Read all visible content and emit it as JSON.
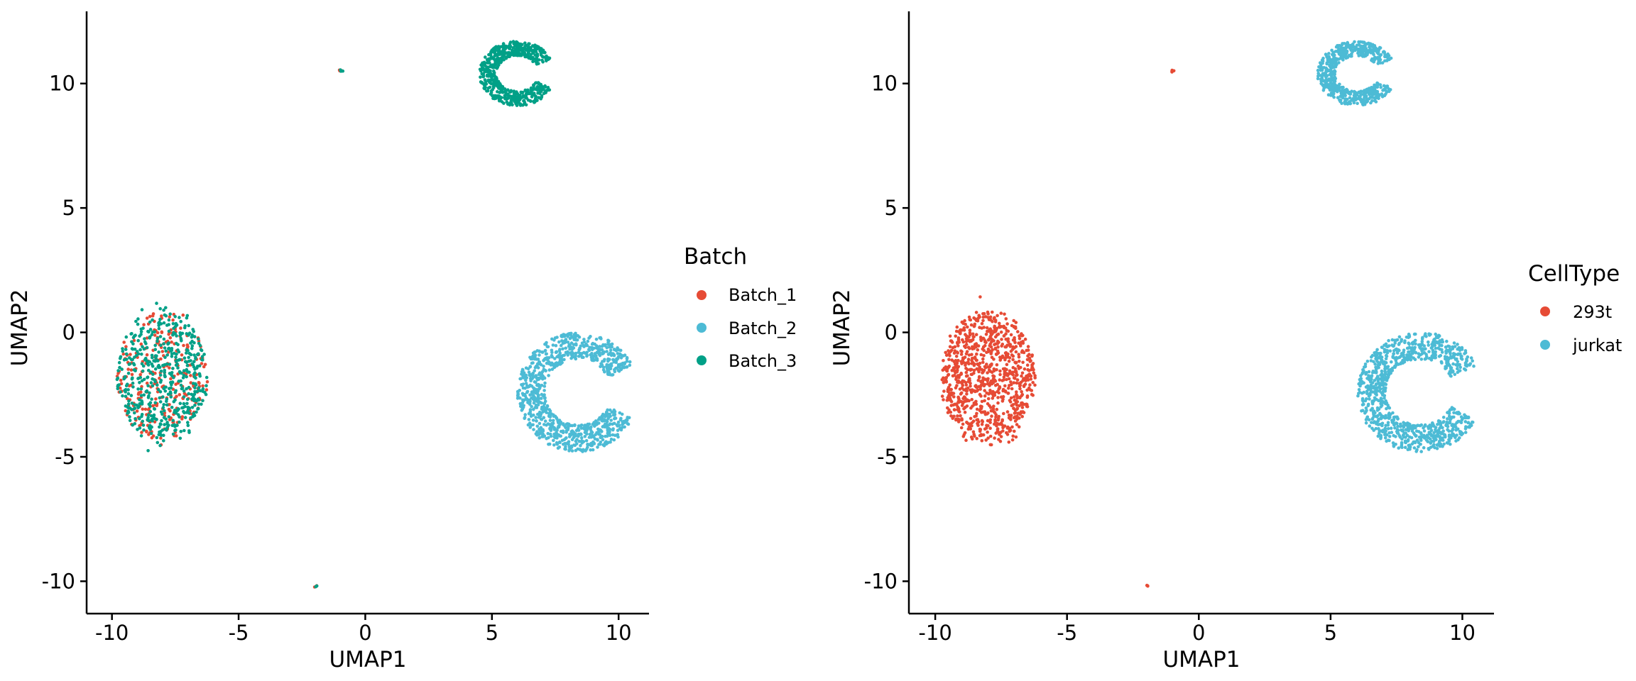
{
  "colors": {
    "red": "#E64B35",
    "blue": "#4DBBD5",
    "green": "#00A087"
  },
  "chart_data": [
    {
      "type": "scatter",
      "xlabel": "UMAP1",
      "ylabel": "UMAP2",
      "xlim": [
        -11,
        11.2
      ],
      "ylim": [
        -11.3,
        12.9
      ],
      "xticks": [
        -10,
        -5,
        0,
        5,
        10
      ],
      "xtick_labels": [
        "-10",
        "-5",
        "0",
        "5",
        "10"
      ],
      "yticks": [
        -10,
        -5,
        0,
        5,
        10
      ],
      "ytick_labels": [
        "-10",
        "-5",
        "0",
        "5",
        "10"
      ],
      "grid": false,
      "legend_position": "right",
      "legend_title": "Batch",
      "series": [
        {
          "name": "Batch_1",
          "color": "#E64B35",
          "clusters": [
            {
              "shape": "blob",
              "cx": -8.0,
              "cy": -1.8,
              "rx": 1.8,
              "ry": 2.6,
              "n": 260
            },
            {
              "shape": "blob",
              "cx": -0.95,
              "cy": 10.5,
              "rx": 0.1,
              "ry": 0.05,
              "n": 3
            },
            {
              "shape": "blob",
              "cx": -1.95,
              "cy": -10.2,
              "rx": 0.06,
              "ry": 0.06,
              "n": 2
            }
          ]
        },
        {
          "name": "Batch_2",
          "color": "#4DBBD5",
          "clusters": [
            {
              "shape": "crescent",
              "cx": 8.4,
              "cy": -2.4,
              "rx": 2.4,
              "ry": 2.4,
              "n": 950
            }
          ]
        },
        {
          "name": "Batch_3",
          "color": "#00A087",
          "clusters": [
            {
              "shape": "blob",
              "cx": -8.0,
              "cy": -1.8,
              "rx": 1.8,
              "ry": 2.6,
              "n": 520
            },
            {
              "shape": "crescent",
              "cx": 6.0,
              "cy": 10.4,
              "rx": 1.5,
              "ry": 1.3,
              "n": 620
            },
            {
              "shape": "blob",
              "cx": -0.95,
              "cy": 10.5,
              "rx": 0.08,
              "ry": 0.05,
              "n": 3
            },
            {
              "shape": "blob",
              "cx": -1.95,
              "cy": -10.2,
              "rx": 0.06,
              "ry": 0.06,
              "n": 2
            }
          ]
        }
      ]
    },
    {
      "type": "scatter",
      "xlabel": "UMAP1",
      "ylabel": "UMAP2",
      "xlim": [
        -11,
        11.2
      ],
      "ylim": [
        -11.3,
        12.9
      ],
      "xticks": [
        -10,
        -5,
        0,
        5,
        10
      ],
      "xtick_labels": [
        "-10",
        "-5",
        "0",
        "5",
        "10"
      ],
      "yticks": [
        -10,
        -5,
        0,
        5,
        10
      ],
      "ytick_labels": [
        "-10",
        "-5",
        "0",
        "5",
        "10"
      ],
      "grid": false,
      "legend_position": "right",
      "legend_title": "CellType",
      "series": [
        {
          "name": "293t",
          "color": "#E64B35",
          "clusters": [
            {
              "shape": "blob",
              "cx": -8.0,
              "cy": -1.8,
              "rx": 1.8,
              "ry": 2.6,
              "n": 900
            },
            {
              "shape": "blob",
              "cx": -0.95,
              "cy": 10.5,
              "rx": 0.1,
              "ry": 0.05,
              "n": 4
            },
            {
              "shape": "blob",
              "cx": -1.95,
              "cy": -10.2,
              "rx": 0.06,
              "ry": 0.06,
              "n": 3
            }
          ]
        },
        {
          "name": "jurkat",
          "color": "#4DBBD5",
          "clusters": [
            {
              "shape": "crescent",
              "cx": 6.0,
              "cy": 10.4,
              "rx": 1.5,
              "ry": 1.3,
              "n": 620
            },
            {
              "shape": "crescent",
              "cx": 8.4,
              "cy": -2.4,
              "rx": 2.4,
              "ry": 2.4,
              "n": 950
            }
          ]
        }
      ]
    }
  ]
}
